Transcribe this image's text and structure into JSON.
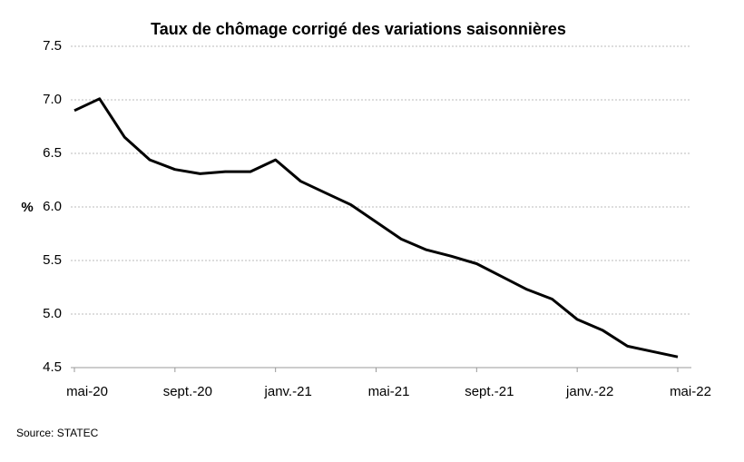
{
  "chart_data": {
    "type": "line",
    "title": "Taux de chômage corrigé des variations saisonnières",
    "y_label": "%",
    "source": "Source: STATEC",
    "categories": [
      "mai-20",
      null,
      null,
      null,
      "sept.-20",
      null,
      null,
      null,
      "janv.-21",
      null,
      null,
      null,
      "mai-21",
      null,
      null,
      null,
      "sept.-21",
      null,
      null,
      null,
      "janv.-22",
      null,
      null,
      null,
      "mai-22"
    ],
    "series": [
      {
        "name": "Taux de chômage",
        "color": "#000000",
        "values": [
          6.9,
          7.01,
          6.65,
          6.44,
          6.35,
          6.31,
          6.33,
          6.33,
          6.44,
          6.24,
          6.13,
          6.02,
          5.86,
          5.7,
          5.6,
          5.54,
          5.47,
          5.35,
          5.23,
          5.14,
          4.95,
          4.85,
          4.7,
          4.65,
          4.6
        ]
      }
    ],
    "ylim": [
      4.5,
      7.5
    ],
    "yticks": [
      {
        "value": 4.5,
        "label": "4.5"
      },
      {
        "value": 5,
        "label": "5.0"
      },
      {
        "value": 5.5,
        "label": "5.5"
      },
      {
        "value": 6,
        "label": "6.0"
      },
      {
        "value": 6.5,
        "label": "6.5"
      },
      {
        "value": 7,
        "label": "7.0"
      },
      {
        "value": 7.5,
        "label": "7.5"
      }
    ],
    "grid": true
  }
}
